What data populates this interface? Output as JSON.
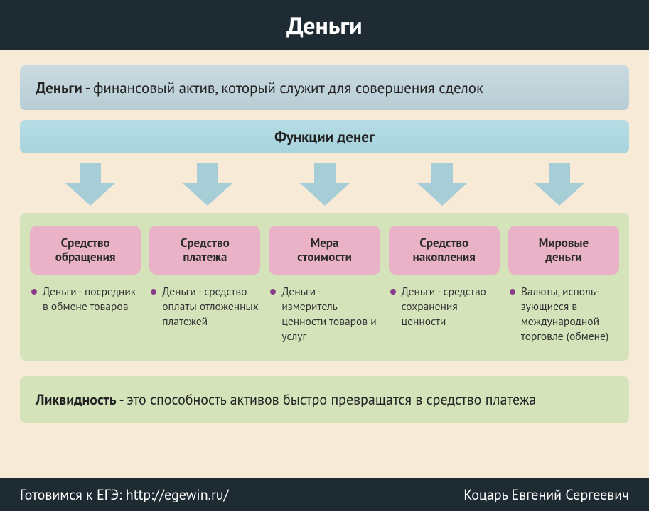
{
  "title": "Деньги",
  "definition_bold": "Деньги",
  "definition_rest": " - финансовый актив, который служит для совершения сделок",
  "functions_header": "Функции денег",
  "arrow": {
    "count": 5,
    "fill": "#a7cdd6",
    "width": 70,
    "height": 60
  },
  "cards": [
    {
      "title": "Средство\nобращения",
      "desc": "Деньги - посредник в обмене товаров"
    },
    {
      "title": "Средство\nплатежа",
      "desc": "Деньги - средство оплаты отложенных платежей"
    },
    {
      "title": "Мера\nстоимости",
      "desc": "Деньги - измеритель ценности товаров и услуг"
    },
    {
      "title": "Средство\nнакопления",
      "desc": "Деньги - средство сохра­нения ценности"
    },
    {
      "title": "Мировые\nденьги",
      "desc": "Валюты, исполь­зующиеся в международной торговле (обмене)"
    }
  ],
  "liquidity_bold": "Ликвидность",
  "liquidity_rest": " - это способность активов быстро превращатся в средство платежа",
  "footer_left": "Готовимся к ЕГЭ: http://egewin.ru/",
  "footer_right": "Коцарь Евгений Сергеевич",
  "colors": {
    "header_bg": "#1f2b33",
    "page_bg": "#f7ebd8",
    "def_grad_top": "#cadbe0",
    "def_grad_bot": "#b7ccd4",
    "func_grad_top": "#b6dde5",
    "func_grad_bot": "#a7d3dd",
    "green_bg": "#d5e3bb",
    "pink_bg": "#e9b2c7",
    "bullet": "#8a3a8a"
  }
}
